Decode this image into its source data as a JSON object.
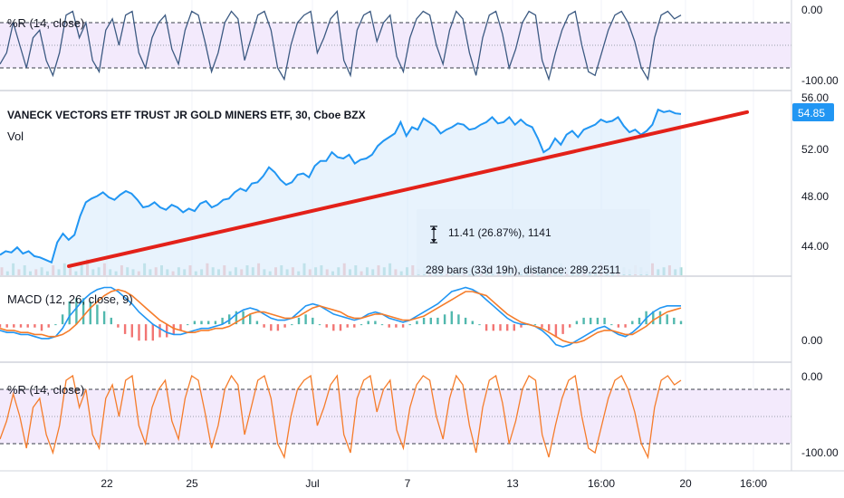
{
  "symbol_title": "VANECK VECTORS ETF TRUST JR GOLD MINERS ETF, 30, Cboe BZX",
  "volume_label": "Vol",
  "last_price_badge": "54.85",
  "colors": {
    "price_line": "#2196f3",
    "trend_line": "#e32119",
    "macd_line": "#2196f3",
    "signal_line": "#f57c2a",
    "hist_up": "#26a69a",
    "hist_down": "#ef5350",
    "wr_top_line": "#3c5a82",
    "wr_bottom_line": "#f57c2a",
    "wr_band": "#f3eafc",
    "grid": "#f0f3fa"
  },
  "panes": {
    "wr_top": {
      "label": "%R (14, close)",
      "ticks": [
        "0.00",
        "-100.00"
      ]
    },
    "price": {
      "ticks": [
        "56.00",
        "52.00",
        "48.00",
        "44.00"
      ]
    },
    "macd": {
      "label": "MACD (12, 26, close, 9)",
      "ticks": [
        "0.00"
      ]
    },
    "wr_bottom": {
      "label": "%R (14, close)",
      "ticks": [
        "0.00",
        "-100.00"
      ]
    }
  },
  "measure_tool": {
    "line1": "11.41 (26.87%), 1141",
    "line2": "289 bars (33d 19h), distance: 289.22511"
  },
  "time_axis": [
    "22",
    "25",
    "Jul",
    "7",
    "13",
    "16:00",
    "20",
    "16:00"
  ],
  "chart_data": {
    "type": "line",
    "price_ylim": [
      42,
      57
    ],
    "price_last": 54.85,
    "trend_line": {
      "start_price": 42.7,
      "end_price": 55.0
    },
    "price_series": [
      43.6,
      43.9,
      43.8,
      44.2,
      43.7,
      43.9,
      43.5,
      43.4,
      43.2,
      43.0,
      44.6,
      45.3,
      44.8,
      45.2,
      46.7,
      47.8,
      48.1,
      48.3,
      48.6,
      48.2,
      48.0,
      48.4,
      48.7,
      48.5,
      48.0,
      47.4,
      47.5,
      47.8,
      47.4,
      47.2,
      47.6,
      47.4,
      47.0,
      47.3,
      47.1,
      47.7,
      47.9,
      47.4,
      47.6,
      48.0,
      48.1,
      48.6,
      48.9,
      48.7,
      49.3,
      49.4,
      49.9,
      50.6,
      50.2,
      49.6,
      49.2,
      49.4,
      50.0,
      50.1,
      49.8,
      50.7,
      51.1,
      51.1,
      51.8,
      51.4,
      51.3,
      51.6,
      50.9,
      51.2,
      51.3,
      51.6,
      52.3,
      52.7,
      53.0,
      53.3,
      54.2,
      53.1,
      53.8,
      53.6,
      54.5,
      54.2,
      53.9,
      53.3,
      53.6,
      53.8,
      54.1,
      54.0,
      53.6,
      53.7,
      54.0,
      54.2,
      54.6,
      54.1,
      54.2,
      54.6,
      54.0,
      54.4,
      54.0,
      53.8,
      52.9,
      51.8,
      52.1,
      52.9,
      52.4,
      53.2,
      53.5,
      53.0,
      53.6,
      53.8,
      54.0,
      54.4,
      54.2,
      54.3,
      54.6,
      53.9,
      53.4,
      53.6,
      53.2,
      53.5,
      54.0,
      55.2,
      55.0,
      55.1,
      54.9,
      54.85
    ],
    "volume_series": [
      4,
      2,
      6,
      3,
      5,
      2,
      3,
      4,
      2,
      5,
      3,
      6,
      4,
      2,
      5,
      8,
      3,
      4,
      6,
      3,
      2,
      5,
      4,
      3,
      2,
      6,
      3,
      4,
      5,
      3,
      2,
      4,
      3,
      5,
      2,
      3,
      6,
      4,
      3,
      5,
      2,
      4,
      3,
      5,
      4,
      6,
      3,
      2,
      4,
      5,
      3,
      4,
      2,
      6,
      3,
      4,
      5,
      3,
      2,
      4,
      6,
      3,
      5,
      2,
      4,
      3,
      5,
      4,
      6,
      3,
      2,
      4,
      5,
      3,
      4,
      2,
      6,
      3,
      5,
      4,
      3,
      2,
      4,
      5,
      3,
      6,
      2,
      4,
      3,
      5,
      4,
      3,
      6,
      2,
      5,
      3,
      4,
      2,
      6,
      3,
      4,
      5,
      3,
      2,
      4,
      6,
      3,
      5,
      2,
      4,
      3,
      5,
      4,
      2,
      6,
      3,
      4,
      5,
      3,
      4
    ],
    "macd_ylim": [
      -1.5,
      2.0
    ],
    "macd_series": [
      -0.3,
      -0.4,
      -0.4,
      -0.5,
      -0.5,
      -0.6,
      -0.7,
      -0.7,
      -0.6,
      -0.2,
      0.4,
      0.8,
      1.2,
      1.5,
      1.7,
      1.8,
      1.8,
      1.6,
      1.3,
      1.0,
      0.6,
      0.3,
      0.0,
      -0.2,
      -0.4,
      -0.5,
      -0.5,
      -0.4,
      -0.3,
      -0.2,
      -0.2,
      -0.1,
      0.0,
      0.2,
      0.5,
      0.7,
      0.8,
      0.7,
      0.5,
      0.3,
      0.2,
      0.2,
      0.3,
      0.6,
      0.9,
      1.0,
      0.9,
      0.7,
      0.5,
      0.4,
      0.3,
      0.2,
      0.3,
      0.5,
      0.6,
      0.5,
      0.3,
      0.2,
      0.1,
      0.2,
      0.4,
      0.6,
      0.8,
      1.0,
      1.3,
      1.6,
      1.7,
      1.8,
      1.7,
      1.5,
      1.2,
      0.9,
      0.6,
      0.3,
      0.1,
      0.0,
      0.0,
      -0.1,
      -0.3,
      -0.6,
      -1.0,
      -1.1,
      -1.0,
      -0.8,
      -0.6,
      -0.4,
      -0.2,
      -0.1,
      -0.3,
      -0.5,
      -0.6,
      -0.4,
      -0.1,
      0.3,
      0.6,
      0.8,
      0.9,
      0.9,
      0.9
    ],
    "signal_series": [
      -0.2,
      -0.3,
      -0.3,
      -0.4,
      -0.4,
      -0.5,
      -0.5,
      -0.6,
      -0.6,
      -0.5,
      -0.3,
      0.0,
      0.4,
      0.8,
      1.1,
      1.4,
      1.6,
      1.7,
      1.6,
      1.4,
      1.1,
      0.8,
      0.5,
      0.2,
      0.0,
      -0.2,
      -0.3,
      -0.4,
      -0.4,
      -0.3,
      -0.3,
      -0.2,
      -0.2,
      -0.1,
      0.1,
      0.3,
      0.5,
      0.6,
      0.6,
      0.5,
      0.4,
      0.3,
      0.3,
      0.4,
      0.6,
      0.8,
      0.9,
      0.8,
      0.7,
      0.6,
      0.4,
      0.3,
      0.3,
      0.4,
      0.5,
      0.5,
      0.4,
      0.3,
      0.2,
      0.2,
      0.3,
      0.4,
      0.6,
      0.8,
      1.0,
      1.2,
      1.4,
      1.6,
      1.6,
      1.5,
      1.4,
      1.1,
      0.8,
      0.5,
      0.3,
      0.1,
      0.0,
      -0.1,
      -0.2,
      -0.4,
      -0.6,
      -0.8,
      -0.9,
      -0.9,
      -0.8,
      -0.6,
      -0.4,
      -0.3,
      -0.3,
      -0.4,
      -0.5,
      -0.5,
      -0.3,
      -0.1,
      0.2,
      0.4,
      0.6,
      0.7,
      0.8
    ],
    "wr_ylim": [
      -110,
      10
    ],
    "wr_top_series": [
      -75,
      -60,
      -20,
      -50,
      -80,
      -40,
      -30,
      -70,
      -90,
      -60,
      -10,
      -5,
      -40,
      -20,
      -70,
      -85,
      -30,
      -15,
      -50,
      -10,
      -5,
      -60,
      -80,
      -40,
      -20,
      -10,
      -55,
      -75,
      -30,
      -5,
      -10,
      -45,
      -85,
      -60,
      -20,
      -5,
      -15,
      -70,
      -40,
      -10,
      -5,
      -30,
      -80,
      -95,
      -50,
      -20,
      -10,
      -5,
      -60,
      -40,
      -15,
      -5,
      -70,
      -90,
      -30,
      -10,
      -5,
      -45,
      -20,
      -10,
      -65,
      -85,
      -40,
      -15,
      -5,
      -10,
      -50,
      -75,
      -30,
      -5,
      -15,
      -60,
      -90,
      -40,
      -10,
      -5,
      -35,
      -80,
      -55,
      -20,
      -5,
      -10,
      -70,
      -95,
      -60,
      -30,
      -10,
      -5,
      -50,
      -85,
      -90,
      -60,
      -30,
      -10,
      -5,
      -20,
      -45,
      -80,
      -95,
      -40,
      -10,
      -5,
      -15,
      -10
    ],
    "wr_bottom_series": [
      -75,
      -55,
      -25,
      -50,
      -85,
      -40,
      -30,
      -70,
      -90,
      -60,
      -10,
      -5,
      -40,
      -20,
      -70,
      -85,
      -30,
      -15,
      -50,
      -10,
      -5,
      -60,
      -80,
      -40,
      -20,
      -10,
      -55,
      -75,
      -30,
      -5,
      -10,
      -45,
      -85,
      -60,
      -20,
      -5,
      -15,
      -70,
      -40,
      -10,
      -5,
      -30,
      -80,
      -95,
      -50,
      -20,
      -10,
      -5,
      -60,
      -40,
      -15,
      -5,
      -70,
      -90,
      -30,
      -10,
      -5,
      -45,
      -20,
      -10,
      -65,
      -85,
      -40,
      -15,
      -5,
      -10,
      -50,
      -75,
      -30,
      -5,
      -15,
      -60,
      -90,
      -40,
      -10,
      -5,
      -35,
      -80,
      -55,
      -20,
      -5,
      -10,
      -70,
      -95,
      -60,
      -30,
      -10,
      -5,
      -50,
      -85,
      -90,
      -60,
      -30,
      -10,
      -5,
      -20,
      -45,
      -80,
      -95,
      -40,
      -10,
      -5,
      -15,
      -10
    ]
  }
}
